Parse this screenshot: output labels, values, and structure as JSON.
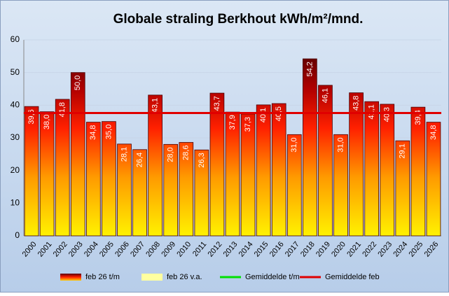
{
  "chart_data": {
    "type": "bar",
    "title": "Globale straling Berkhout kWh/m²/mnd.",
    "categories": [
      "2000",
      "2001",
      "2002",
      "2003",
      "2004",
      "2005",
      "2006",
      "2007",
      "2008",
      "2009",
      "2010",
      "2011",
      "2012",
      "2013",
      "2014",
      "2015",
      "2016",
      "2017",
      "2018",
      "2019",
      "2020",
      "2021",
      "2022",
      "2023",
      "2024",
      "2025",
      "2026"
    ],
    "series": [
      {
        "name": "feb 26 t/m",
        "color": "#c00000",
        "values": [
          39.6,
          38.0,
          41.8,
          50.0,
          34.8,
          35.0,
          28.1,
          26.4,
          43.1,
          28.0,
          28.6,
          26.3,
          43.7,
          37.9,
          37.3,
          40.1,
          40.5,
          31.0,
          54.2,
          46.1,
          31.0,
          43.8,
          41.1,
          40.3,
          29.1,
          39.4,
          34.8
        ],
        "value_labels": [
          "39,6",
          "38,0",
          "41,8",
          "50,0",
          "34,8",
          "35,0",
          "28,1",
          "26,4",
          "43,1",
          "28,0",
          "28,6",
          "26,3",
          "43,7",
          "37,9",
          "37,3",
          "40,1",
          "40,5",
          "31,0",
          "54,2",
          "46,1",
          "31,0",
          "43,8",
          "41,1",
          "40,3",
          "29,1",
          "39,4",
          "34,8"
        ]
      },
      {
        "name": "feb 26 v.a.",
        "color": "#ffffa0"
      },
      {
        "name": "Gemiddelde t/m",
        "color": "#00e000"
      },
      {
        "name": "Gemiddelde feb",
        "color": "#e00000",
        "value": 37.6
      }
    ],
    "ylim": [
      0,
      60
    ],
    "yticks": [
      0,
      10,
      20,
      30,
      40,
      50,
      60
    ],
    "grid": true
  }
}
